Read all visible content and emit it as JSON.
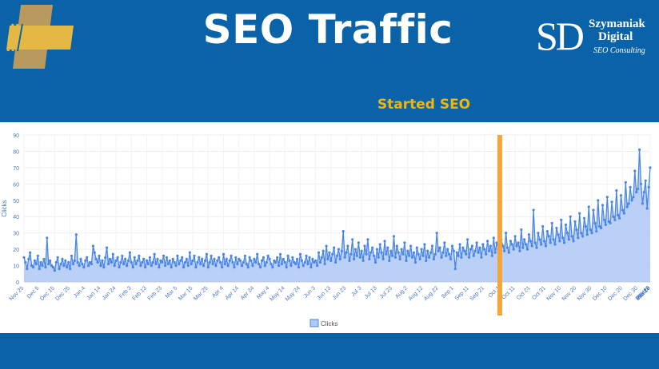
{
  "header": {
    "title": "SEO Traffic",
    "annotation": "Started SEO",
    "brand": {
      "mark": "SD",
      "name_line1": "Szymaniak",
      "name_line2": "Digital",
      "tagline": "SEO Consulting"
    }
  },
  "colors": {
    "background": "#0a63a8",
    "accent": "#f2b705",
    "series_line": "#4a86e8",
    "series_fill": "#aec8f5",
    "marker_line": "#f4a53a",
    "logo_gold": "#e4b844"
  },
  "chart_data": {
    "type": "area",
    "title": "",
    "xlabel": "",
    "ylabel": "Clicks",
    "ylim": [
      0,
      90
    ],
    "yticks": [
      0,
      10,
      20,
      30,
      40,
      50,
      60,
      70,
      80,
      90
    ],
    "grid": true,
    "legend_position": "bottom",
    "x_tick_labels": [
      "Nov 25",
      "Dec 5",
      "Dec 15",
      "Dec 25",
      "Jan 4",
      "Jan 14",
      "Jan 24",
      "Feb 3",
      "Feb 13",
      "Feb 23",
      "Mar 5",
      "Mar 15",
      "Mar 25",
      "Apr 4",
      "Apr 14",
      "Apr 24",
      "May 4",
      "May 14",
      "May 24",
      "Jun 3",
      "Jun 13",
      "Jun 23",
      "Jul 3",
      "Jul 13",
      "Jul 23",
      "Aug 2",
      "Aug 12",
      "Aug 22",
      "Sep 1",
      "Sep 11",
      "Sep 21",
      "Oct 1",
      "Oct 11",
      "Oct 21",
      "Oct 31",
      "Nov 10",
      "Nov 20",
      "Nov 30",
      "Dec 10",
      "Dec 20",
      "Dec 30",
      "Jan 9",
      "Jan 19",
      "Jan 29",
      "Feb 8",
      "Feb 18",
      "Feb 28",
      "Mar 10",
      "Mar 20"
    ],
    "days_per_tick": 10,
    "annotation_x": "Oct 1",
    "annotation_label": "Started SEO",
    "series": [
      {
        "name": "Clicks",
        "values": [
          15,
          12,
          8,
          14,
          18,
          10,
          9,
          13,
          11,
          16,
          8,
          12,
          10,
          14,
          9,
          27,
          11,
          13,
          10,
          9,
          7,
          12,
          15,
          8,
          11,
          14,
          10,
          13,
          9,
          12,
          8,
          16,
          11,
          13,
          29,
          12,
          10,
          14,
          11,
          9,
          13,
          15,
          10,
          12,
          11,
          22,
          18,
          14,
          12,
          16,
          10,
          13,
          9,
          15,
          21,
          11,
          14,
          12,
          17,
          10,
          13,
          15,
          9,
          12,
          16,
          11,
          14,
          10,
          13,
          18,
          12,
          9,
          15,
          11,
          13,
          16,
          10,
          12,
          14,
          9,
          13,
          11,
          15,
          10,
          12,
          17,
          11,
          14,
          9,
          13,
          12,
          16,
          10,
          15,
          11,
          13,
          9,
          14,
          12,
          10,
          16,
          11,
          13,
          15,
          9,
          12,
          14,
          10,
          18,
          11,
          13,
          16,
          9,
          12,
          15,
          11,
          14,
          10,
          13,
          17,
          9,
          12,
          16,
          11,
          14,
          10,
          13,
          15,
          12,
          9,
          17,
          11,
          14,
          10,
          13,
          16,
          12,
          9,
          15,
          11,
          14,
          13,
          10,
          12,
          16,
          11,
          9,
          15,
          13,
          10,
          14,
          12,
          17,
          11,
          9,
          13,
          15,
          10,
          12,
          16,
          14,
          11,
          9,
          13,
          12,
          15,
          10,
          17,
          11,
          14,
          12,
          9,
          16,
          13,
          10,
          15,
          12,
          11,
          14,
          9,
          17,
          13,
          10,
          12,
          16,
          11,
          15,
          9,
          14,
          12,
          13,
          10,
          18,
          12,
          15,
          19,
          11,
          22,
          14,
          18,
          13,
          17,
          21,
          12,
          16,
          20,
          14,
          19,
          31,
          15,
          18,
          22,
          13,
          17,
          26,
          14,
          20,
          16,
          24,
          15,
          19,
          13,
          22,
          17,
          26,
          14,
          18,
          21,
          16,
          12,
          20,
          15,
          23,
          18,
          14,
          25,
          17,
          21,
          13,
          19,
          16,
          28,
          15,
          22,
          18,
          14,
          20,
          17,
          24,
          13,
          19,
          16,
          22,
          15,
          18,
          12,
          21,
          17,
          14,
          20,
          16,
          23,
          13,
          19,
          15,
          18,
          22,
          14,
          17,
          30,
          19,
          21,
          15,
          18,
          24,
          16,
          20,
          17,
          14,
          22,
          19,
          8,
          18,
          16,
          23,
          15,
          21,
          19,
          17,
          26,
          15,
          20,
          22,
          16,
          19,
          24,
          18,
          21,
          15,
          23,
          20,
          17,
          25,
          19,
          22,
          16,
          27,
          18,
          24,
          20,
          17,
          26,
          22,
          19,
          30,
          21,
          18,
          25,
          23,
          20,
          28,
          22,
          24,
          19,
          32,
          21,
          26,
          23,
          20,
          29,
          25,
          22,
          44,
          24,
          21,
          30,
          26,
          23,
          34,
          25,
          22,
          31,
          28,
          24,
          36,
          26,
          23,
          33,
          29,
          25,
          38,
          27,
          24,
          35,
          30,
          26,
          40,
          28,
          25,
          37,
          32,
          27,
          42,
          30,
          28,
          39,
          34,
          29,
          46,
          32,
          30,
          44,
          36,
          31,
          50,
          34,
          33,
          47,
          38,
          35,
          52,
          37,
          36,
          49,
          40,
          38,
          56,
          41,
          39,
          53,
          44,
          42,
          61,
          46,
          48,
          58,
          50,
          52,
          68,
          55,
          57,
          81,
          60,
          48,
          55,
          62,
          45,
          58,
          70
        ]
      }
    ]
  }
}
